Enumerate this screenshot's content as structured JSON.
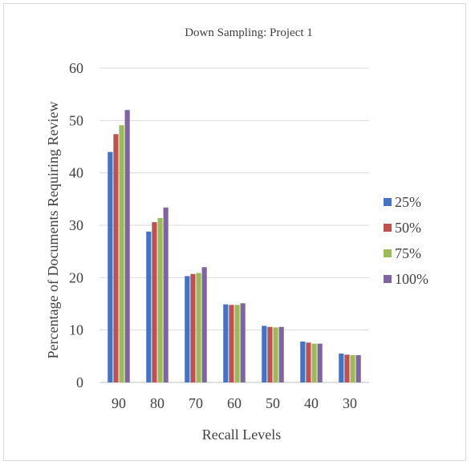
{
  "chart_data": {
    "type": "bar",
    "title": "Down Sampling: Project 1",
    "xlabel": "Recall Levels",
    "ylabel": "Percentage of Documents Requiring Review",
    "ylim": [
      0,
      60
    ],
    "yticks": [
      "0",
      "10",
      "20",
      "30",
      "40",
      "50",
      "60"
    ],
    "grid": true,
    "legend_position": "right",
    "categories": [
      "90",
      "80",
      "70",
      "60",
      "50",
      "40",
      "30"
    ],
    "series": [
      {
        "name": "25%",
        "color": "#4472c4",
        "values": [
          44.0,
          28.8,
          20.3,
          14.9,
          10.8,
          7.8,
          5.5
        ]
      },
      {
        "name": "50%",
        "color": "#c0504d",
        "values": [
          47.4,
          30.6,
          20.7,
          14.8,
          10.6,
          7.6,
          5.3
        ]
      },
      {
        "name": "75%",
        "color": "#9bbb59",
        "values": [
          49.1,
          31.4,
          20.9,
          14.8,
          10.5,
          7.4,
          5.2
        ]
      },
      {
        "name": "100%",
        "color": "#8064a2",
        "values": [
          52.0,
          33.4,
          22.0,
          15.1,
          10.6,
          7.4,
          5.2
        ]
      }
    ]
  }
}
